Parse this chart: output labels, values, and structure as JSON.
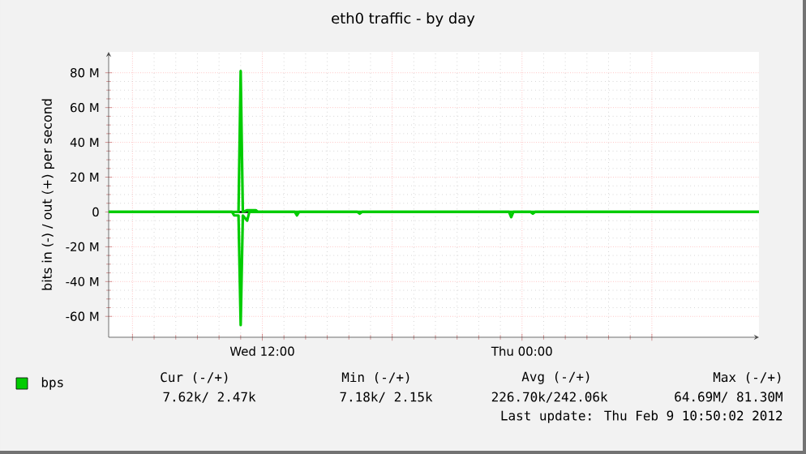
{
  "chart_data": {
    "type": "line",
    "title": "eth0 traffic - by day",
    "ylabel": "bits in (-) / out (+) per second",
    "xlim": [
      "2012-02-08T04:54",
      "2012-02-09T10:57"
    ],
    "ylim": [
      -72,
      92
    ],
    "xticks": [
      {
        "value": "2012-02-08T06:00",
        "label": null
      },
      {
        "value": "2012-02-08T12:00",
        "label": "Wed 12:00"
      },
      {
        "value": "2012-02-08T18:00",
        "label": null
      },
      {
        "value": "2012-02-09T00:00",
        "label": "Thu 00:00"
      },
      {
        "value": "2012-02-09T06:00",
        "label": null
      }
    ],
    "yticks": [
      {
        "value": -60,
        "label": "-60 M"
      },
      {
        "value": -40,
        "label": "-40 M"
      },
      {
        "value": -20,
        "label": "-20 M"
      },
      0,
      {
        "value": 20,
        "label": "20 M"
      },
      {
        "value": 40,
        "label": "40 M"
      },
      {
        "value": 60,
        "label": "60 M"
      },
      {
        "value": 80,
        "label": "80 M"
      }
    ],
    "grid": true,
    "legend": "bottom left",
    "marker": "none",
    "line_style": "solid",
    "ref_lines": [
      {
        "axis": "y",
        "value": 0,
        "color": "#000000"
      }
    ],
    "series": [
      {
        "name": "bps",
        "color": "#00cc00",
        "x": [
          "2012-02-08T04:54",
          "2012-02-08T10:54",
          "2012-02-08T11:00",
          "2012-02-08T11:06",
          "2012-02-08T11:18",
          "2012-02-08T11:42",
          "2012-02-08T11:48",
          "2012-02-09T10:57"
        ],
        "values": [
          0,
          0,
          81,
          0,
          1,
          1,
          0,
          0
        ]
      },
      {
        "color": "#00cc00",
        "x": [
          "2012-02-08T04:54",
          "2012-02-08T10:36",
          "2012-02-08T10:42",
          "2012-02-08T10:54",
          "2012-02-08T11:00",
          "2012-02-08T11:06",
          "2012-02-08T11:18",
          "2012-02-08T11:24",
          "2012-02-08T13:30",
          "2012-02-08T13:36",
          "2012-02-08T13:42",
          "2012-02-08T16:24",
          "2012-02-08T16:30",
          "2012-02-08T16:36",
          "2012-02-08T23:24",
          "2012-02-08T23:30",
          "2012-02-08T23:36",
          "2012-02-09T00:24",
          "2012-02-09T00:30",
          "2012-02-09T00:36",
          "2012-02-09T10:57"
        ],
        "values": [
          0,
          0,
          -2,
          -2,
          -65,
          -2,
          -5,
          0,
          0,
          -2,
          0,
          0,
          -1,
          0,
          0,
          -3,
          0,
          0,
          -1,
          0,
          0
        ]
      }
    ],
    "annotations": [
      "Cur (-/+)",
      "Min (-/+)",
      "Avg (-/+)",
      "Max (-/+)",
      "7.62k/ 2.47k",
      "7.18k/ 2.15k",
      "226.70k/242.06k",
      "64.69M/ 81.30M",
      "Last update: Thu Feb 9 10:50:02 2012"
    ]
  }
}
